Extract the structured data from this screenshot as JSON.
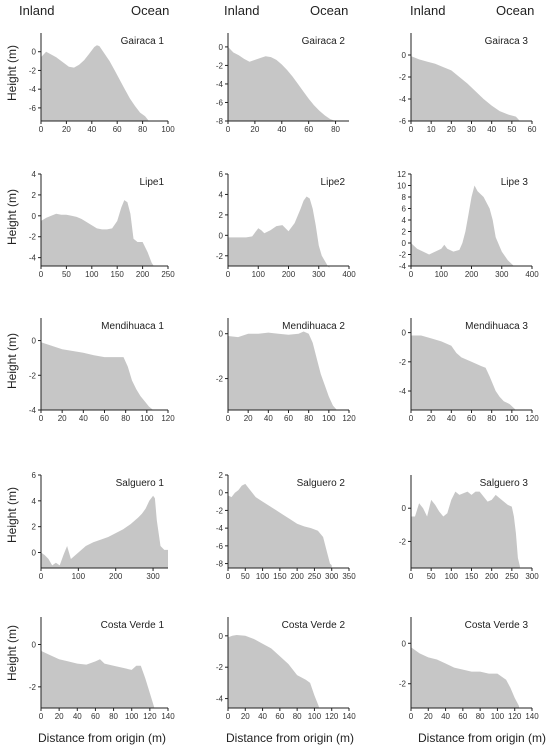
{
  "headers": {
    "inland": "Inland",
    "ocean": "Ocean"
  },
  "axis_labels": {
    "y": "Height (m)",
    "x": "Distance from origin (m)"
  },
  "colors": {
    "fill": "#c6c6c6",
    "axis": "#222222"
  },
  "chart_data": [
    {
      "type": "area",
      "title": "Gairaca 1",
      "x": [
        0,
        4,
        8,
        12,
        18,
        22,
        26,
        30,
        34,
        38,
        42,
        44,
        46,
        50,
        54,
        58,
        62,
        66,
        70,
        74,
        78,
        82,
        85
      ],
      "y": [
        -0.6,
        0,
        -0.3,
        -0.6,
        -1.2,
        -1.6,
        -1.7,
        -1.4,
        -0.9,
        -0.2,
        0.5,
        0.7,
        0.6,
        -0.2,
        -1.0,
        -2,
        -3,
        -4,
        -5,
        -5.8,
        -6.5,
        -6.9,
        -7.4
      ],
      "xticks": [
        0,
        20,
        40,
        60,
        80,
        100
      ],
      "yticks": [
        0,
        -2,
        -4,
        -6
      ],
      "xlim": [
        0,
        100
      ],
      "ylim": [
        -7.4,
        2
      ]
    },
    {
      "type": "area",
      "title": "Gairaca 2",
      "x": [
        0,
        4,
        8,
        12,
        16,
        20,
        24,
        28,
        32,
        36,
        40,
        44,
        48,
        52,
        56,
        60,
        64,
        68,
        72,
        76,
        80,
        84
      ],
      "y": [
        0,
        -0.6,
        -0.9,
        -1.3,
        -1.6,
        -1.4,
        -1.2,
        -1.0,
        -1.1,
        -1.4,
        -1.9,
        -2.5,
        -3.2,
        -4,
        -4.8,
        -5.6,
        -6.3,
        -6.9,
        -7.4,
        -7.8,
        -8,
        -8
      ],
      "xticks": [
        0,
        20,
        40,
        60,
        80
      ],
      "yticks": [
        0,
        -2,
        -4,
        -6,
        -8
      ],
      "xlim": [
        0,
        90
      ],
      "ylim": [
        -8,
        1.5
      ]
    },
    {
      "type": "area",
      "title": "Gairaca 3",
      "x": [
        0,
        4,
        8,
        12,
        16,
        20,
        24,
        28,
        32,
        36,
        40,
        44,
        48,
        52,
        54
      ],
      "y": [
        -0.1,
        -0.4,
        -0.6,
        -0.8,
        -1.1,
        -1.4,
        -2,
        -2.6,
        -3.3,
        -4,
        -4.6,
        -5.1,
        -5.4,
        -5.6,
        -6
      ],
      "xticks": [
        0,
        10,
        20,
        30,
        40,
        50,
        60
      ],
      "yticks": [
        0,
        -2,
        -4,
        -6
      ],
      "xlim": [
        0,
        60
      ],
      "ylim": [
        -6,
        2
      ]
    },
    {
      "type": "area",
      "title": "Lipe1",
      "x": [
        0,
        10,
        20,
        30,
        40,
        50,
        60,
        70,
        80,
        90,
        100,
        110,
        120,
        130,
        140,
        150,
        158,
        164,
        170,
        176,
        182,
        190,
        200,
        210,
        218,
        222
      ],
      "y": [
        -0.5,
        -0.2,
        0,
        0.2,
        0.1,
        0.1,
        0,
        -0.1,
        -0.3,
        -0.6,
        -0.9,
        -1.2,
        -1.3,
        -1.3,
        -1.2,
        -0.5,
        0.8,
        1.5,
        1.3,
        0.2,
        -2.2,
        -2.5,
        -2.5,
        -3.5,
        -4.5,
        -4.8
      ],
      "xticks": [
        0,
        50,
        100,
        150,
        200,
        250
      ],
      "yticks": [
        4,
        2,
        0,
        -2,
        -4
      ],
      "xlim": [
        0,
        250
      ],
      "ylim": [
        -4.8,
        4
      ]
    },
    {
      "type": "area",
      "title": "Lipe2",
      "x": [
        0,
        20,
        40,
        60,
        80,
        90,
        100,
        110,
        120,
        140,
        160,
        180,
        200,
        220,
        240,
        250,
        260,
        270,
        280,
        290,
        300,
        310,
        320,
        330,
        335
      ],
      "y": [
        -0.2,
        -0.2,
        -0.2,
        -0.2,
        -0.1,
        0.3,
        0.7,
        0.5,
        0.2,
        0.5,
        0.9,
        1,
        0.4,
        1.2,
        2.6,
        3.4,
        3.8,
        3.6,
        2.6,
        1,
        -1,
        -2,
        -2.5,
        -3,
        -3.2
      ],
      "xticks": [
        0,
        100,
        200,
        300,
        400
      ],
      "yticks": [
        6,
        4,
        2,
        0,
        -2
      ],
      "xlim": [
        0,
        400
      ],
      "ylim": [
        -3,
        6
      ]
    },
    {
      "type": "area",
      "title": "Lipe 3",
      "x": [
        0,
        20,
        40,
        60,
        80,
        100,
        110,
        120,
        140,
        160,
        170,
        180,
        190,
        200,
        210,
        220,
        230,
        240,
        250,
        260,
        270,
        280,
        300,
        320,
        340
      ],
      "y": [
        0,
        -1,
        -1.5,
        -2,
        -1.5,
        -1,
        -0.3,
        -1,
        -1.5,
        -1.2,
        0,
        2,
        5,
        8,
        10,
        9,
        8.5,
        8,
        7,
        6,
        4,
        1,
        -1.5,
        -3,
        -4
      ],
      "xticks": [
        0,
        100,
        200,
        300,
        400
      ],
      "yticks": [
        12,
        10,
        8,
        6,
        4,
        2,
        0,
        -2,
        -4
      ],
      "xlim": [
        0,
        400
      ],
      "ylim": [
        -4,
        12
      ]
    },
    {
      "type": "area",
      "title": "Mendihuaca 1",
      "x": [
        0,
        5,
        10,
        15,
        20,
        30,
        40,
        50,
        60,
        70,
        78,
        82,
        86,
        90,
        94,
        98,
        102,
        106
      ],
      "y": [
        -0.1,
        -0.2,
        -0.3,
        -0.4,
        -0.5,
        -0.6,
        -0.7,
        -0.85,
        -0.95,
        -0.95,
        -0.95,
        -1.5,
        -2.3,
        -2.8,
        -3.2,
        -3.5,
        -3.8,
        -4
      ],
      "xticks": [
        0,
        20,
        40,
        60,
        80,
        100,
        120
      ],
      "yticks": [
        0,
        -2,
        -4
      ],
      "xlim": [
        0,
        120
      ],
      "ylim": [
        -4,
        1.3
      ]
    },
    {
      "type": "area",
      "title": "Mendihuaca 2",
      "x": [
        0,
        10,
        20,
        30,
        40,
        50,
        60,
        70,
        75,
        80,
        84,
        88,
        92,
        96,
        100,
        104,
        108
      ],
      "y": [
        -0.1,
        -0.15,
        0,
        0,
        0.05,
        0,
        -0.05,
        0,
        0.1,
        0,
        -0.4,
        -1.1,
        -1.8,
        -2.3,
        -2.8,
        -3.2,
        -3.4
      ],
      "xticks": [
        0,
        20,
        40,
        60,
        80,
        100,
        120
      ],
      "yticks": [
        0,
        -2
      ],
      "xlim": [
        0,
        120
      ],
      "ylim": [
        -3.4,
        0.7
      ]
    },
    {
      "type": "area",
      "title": "Mendihuaca 3",
      "x": [
        0,
        10,
        20,
        30,
        40,
        45,
        50,
        60,
        70,
        74,
        78,
        84,
        88,
        92,
        98,
        104
      ],
      "y": [
        -0.2,
        -0.2,
        -0.4,
        -0.6,
        -0.9,
        -1.4,
        -1.7,
        -2,
        -2.3,
        -2.4,
        -3,
        -4,
        -4.4,
        -4.7,
        -4.9,
        -5.3
      ],
      "xticks": [
        0,
        20,
        40,
        60,
        80,
        100,
        120
      ],
      "yticks": [
        0,
        -2,
        -4
      ],
      "xlim": [
        0,
        120
      ],
      "ylim": [
        -5.3,
        1
      ]
    },
    {
      "type": "area",
      "title": "Salguero 1",
      "x": [
        0,
        10,
        20,
        30,
        40,
        50,
        60,
        70,
        80,
        100,
        120,
        140,
        160,
        180,
        200,
        220,
        240,
        260,
        270,
        280,
        290,
        300,
        305,
        310,
        320,
        330,
        340
      ],
      "y": [
        0,
        -0.2,
        -0.5,
        -1,
        -0.8,
        -1,
        -0.2,
        0.5,
        -0.5,
        0,
        0.5,
        0.8,
        1,
        1.2,
        1.5,
        1.8,
        2.2,
        2.7,
        3,
        3.4,
        4,
        4.4,
        4.2,
        2.5,
        0.5,
        0.2,
        0.2
      ],
      "xticks": [
        0,
        100,
        200,
        300
      ],
      "yticks": [
        6,
        4,
        2,
        0
      ],
      "xlim": [
        0,
        340
      ],
      "ylim": [
        -1.2,
        6
      ]
    },
    {
      "type": "area",
      "title": "Salguero 2",
      "x": [
        0,
        10,
        20,
        30,
        40,
        50,
        60,
        80,
        100,
        120,
        140,
        160,
        180,
        200,
        220,
        240,
        260,
        275,
        285,
        295,
        300
      ],
      "y": [
        -0.3,
        -0.5,
        0,
        0.3,
        0.8,
        1,
        0.5,
        -0.5,
        -1,
        -1.5,
        -2,
        -2.5,
        -3,
        -3.5,
        -3.8,
        -4,
        -4.3,
        -5,
        -6.5,
        -8,
        -8.2
      ],
      "xticks": [
        0,
        50,
        100,
        150,
        200,
        250,
        300,
        350
      ],
      "yticks": [
        2,
        0,
        -2,
        -4,
        -6,
        -8
      ],
      "xlim": [
        0,
        350
      ],
      "ylim": [
        -8.5,
        2
      ]
    },
    {
      "type": "area",
      "title": "Salguero 3",
      "x": [
        0,
        10,
        20,
        30,
        40,
        50,
        60,
        70,
        80,
        90,
        100,
        110,
        120,
        130,
        140,
        150,
        160,
        170,
        180,
        190,
        200,
        210,
        220,
        230,
        240,
        250,
        255,
        260,
        265,
        270
      ],
      "y": [
        -0.5,
        -0.5,
        0.3,
        0,
        -0.5,
        0.5,
        0.2,
        -0.2,
        -0.5,
        -0.3,
        0.5,
        1,
        0.8,
        0.9,
        1,
        0.8,
        1,
        1,
        0.7,
        0.4,
        0.5,
        0.8,
        0.6,
        0.4,
        0.2,
        0.1,
        -0.5,
        -1.5,
        -3,
        -3.5
      ],
      "xticks": [
        0,
        50,
        100,
        150,
        200,
        250,
        300
      ],
      "yticks": [
        0,
        -2
      ],
      "xlim": [
        0,
        300
      ],
      "ylim": [
        -3.6,
        2
      ]
    },
    {
      "type": "area",
      "title": "Costa Verde 1",
      "x": [
        0,
        10,
        20,
        30,
        40,
        50,
        60,
        65,
        70,
        80,
        90,
        100,
        105,
        110,
        115,
        120,
        125
      ],
      "y": [
        -0.3,
        -0.5,
        -0.7,
        -0.8,
        -0.9,
        -0.95,
        -0.8,
        -0.7,
        -0.9,
        -1,
        -1.1,
        -1.2,
        -1,
        -1,
        -1.6,
        -2.3,
        -3
      ],
      "xticks": [
        0,
        20,
        40,
        60,
        80,
        100,
        120,
        140
      ],
      "yticks": [
        0,
        -2
      ],
      "xlim": [
        0,
        140
      ],
      "ylim": [
        -3,
        1.3
      ]
    },
    {
      "type": "area",
      "title": "Costa Verde 2",
      "x": [
        0,
        5,
        10,
        20,
        30,
        40,
        50,
        60,
        70,
        80,
        90,
        95,
        100,
        105
      ],
      "y": [
        -0.1,
        0,
        0.05,
        0,
        -0.2,
        -0.5,
        -0.8,
        -1.3,
        -1.8,
        -2.5,
        -2.8,
        -3,
        -3.8,
        -4.5
      ],
      "xticks": [
        0,
        20,
        40,
        60,
        80,
        100,
        120,
        140
      ],
      "yticks": [
        0,
        -2,
        -4
      ],
      "xlim": [
        0,
        140
      ],
      "ylim": [
        -4.6,
        1.2
      ]
    },
    {
      "type": "area",
      "title": "Costa Verde 3",
      "x": [
        0,
        10,
        20,
        30,
        40,
        50,
        60,
        70,
        80,
        90,
        100,
        110,
        115,
        120,
        125
      ],
      "y": [
        -0.2,
        -0.5,
        -0.7,
        -0.8,
        -1,
        -1.2,
        -1.3,
        -1.4,
        -1.4,
        -1.5,
        -1.5,
        -1.8,
        -2.2,
        -2.7,
        -3.1
      ],
      "xticks": [
        0,
        20,
        40,
        60,
        80,
        100,
        120,
        140
      ],
      "yticks": [
        0,
        -2
      ],
      "xlim": [
        0,
        140
      ],
      "ylim": [
        -3.2,
        1.3
      ]
    }
  ]
}
